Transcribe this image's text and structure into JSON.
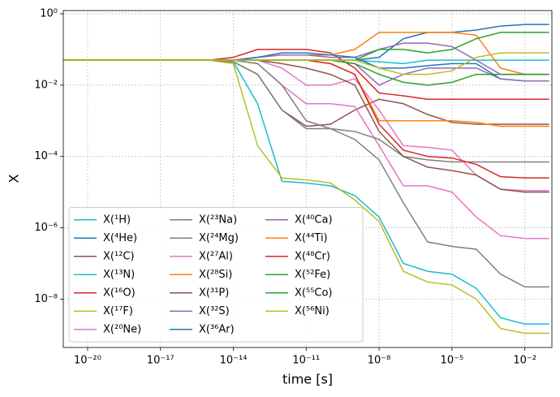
{
  "chart_data": {
    "type": "line",
    "x_label": "time [s]",
    "y_label": "X",
    "x_log": true,
    "y_log": true,
    "grid": true,
    "legend": "lower left",
    "legend_columns": 3,
    "xlim": [
      1e-21,
      0.13
    ],
    "ylim": [
      4.4e-10,
      1.23
    ],
    "xticks": [
      {
        "value": 1e-20,
        "label": "10⁻²⁰"
      },
      {
        "value": 1e-17,
        "label": "10⁻¹⁷"
      },
      {
        "value": 1e-14,
        "label": "10⁻¹⁴"
      },
      {
        "value": 1e-11,
        "label": "10⁻¹¹"
      },
      {
        "value": 1e-08,
        "label": "10⁻⁸"
      },
      {
        "value": 1e-05,
        "label": "10⁻⁵"
      },
      {
        "value": 0.01,
        "label": "10⁻²"
      }
    ],
    "yticks": [
      {
        "value": 1,
        "label": "10⁰"
      },
      {
        "value": 0.01,
        "label": "10⁻²"
      },
      {
        "value": 0.0001,
        "label": "10⁻⁴"
      },
      {
        "value": 1e-06,
        "label": "10⁻⁶"
      },
      {
        "value": 1e-08,
        "label": "10⁻⁸"
      }
    ],
    "x": [
      1e-21,
      1e-15,
      1e-14,
      1e-13,
      1e-12,
      1e-11,
      1e-10,
      1e-09,
      1e-08,
      1e-07,
      1e-06,
      1e-05,
      0.0001,
      0.001,
      0.01,
      0.1
    ],
    "series": [
      {
        "name": "X(¹H)",
        "color": "#17becf",
        "values": [
          0.05,
          0.05,
          0.045,
          0.003,
          2e-05,
          1.8e-05,
          1.5e-05,
          8e-06,
          2e-06,
          1e-07,
          6e-08,
          5e-08,
          2e-08,
          3e-09,
          2e-09,
          2e-09
        ]
      },
      {
        "name": "X(⁴He)",
        "color": "#1f77b4",
        "values": [
          0.05,
          0.05,
          0.05,
          0.05,
          0.05,
          0.05,
          0.05,
          0.05,
          0.06,
          0.2,
          0.3,
          0.3,
          0.35,
          0.45,
          0.5,
          0.5
        ]
      },
      {
        "name": "X(¹²C)",
        "color": "#8c564b",
        "values": [
          0.05,
          0.05,
          0.045,
          0.02,
          0.002,
          0.0007,
          0.0008,
          0.002,
          0.004,
          0.003,
          0.0015,
          0.0009,
          0.0008,
          0.0008,
          0.0008,
          0.0008
        ]
      },
      {
        "name": "X(¹³N)",
        "color": "#17becf",
        "values": [
          0.05,
          0.05,
          0.05,
          0.05,
          0.05,
          0.05,
          0.05,
          0.05,
          0.045,
          0.04,
          0.05,
          0.05,
          0.05,
          0.05,
          0.05,
          0.05
        ]
      },
      {
        "name": "X(¹⁶O)",
        "color": "#d62728",
        "values": [
          0.05,
          0.05,
          0.06,
          0.1,
          0.1,
          0.1,
          0.08,
          0.03,
          0.006,
          0.005,
          0.004,
          0.004,
          0.004,
          0.004,
          0.004,
          0.004
        ]
      },
      {
        "name": "X(¹⁷F)",
        "color": "#bcbd22",
        "values": [
          0.05,
          0.05,
          0.04,
          0.0002,
          2.5e-05,
          2.2e-05,
          1.8e-05,
          6e-06,
          1.5e-06,
          6e-08,
          3e-08,
          2.5e-08,
          1e-08,
          1.5e-09,
          1.1e-09,
          1.1e-09
        ]
      },
      {
        "name": "X(²⁰Ne)",
        "color": "#e377c2",
        "values": [
          0.05,
          0.05,
          0.05,
          0.04,
          0.01,
          0.003,
          0.003,
          0.0025,
          0.0002,
          1.5e-05,
          1.5e-05,
          1e-05,
          2e-06,
          6e-07,
          5e-07,
          5e-07
        ]
      },
      {
        "name": "X(²³Na)",
        "color": "#7f7f7f",
        "values": [
          0.05,
          0.05,
          0.045,
          0.02,
          0.002,
          0.0006,
          0.0006,
          0.0003,
          8e-05,
          5e-06,
          4e-07,
          3e-07,
          2.5e-07,
          5e-08,
          2.2e-08,
          2.2e-08
        ]
      },
      {
        "name": "X(²⁴Mg)",
        "color": "#7f7f7f",
        "values": [
          0.05,
          0.05,
          0.05,
          0.04,
          0.01,
          0.001,
          0.0006,
          0.0005,
          0.0003,
          0.0001,
          8e-05,
          7e-05,
          7e-05,
          7e-05,
          7e-05,
          7e-05
        ]
      },
      {
        "name": "X(²⁷Al)",
        "color": "#e377c2",
        "values": [
          0.05,
          0.05,
          0.05,
          0.05,
          0.03,
          0.01,
          0.01,
          0.015,
          0.002,
          0.0002,
          0.00018,
          0.00015,
          3e-05,
          1.2e-05,
          1.1e-05,
          1.1e-05
        ]
      },
      {
        "name": "X(²⁸Si)",
        "color": "#ff7f0e",
        "values": [
          0.05,
          0.05,
          0.05,
          0.06,
          0.07,
          0.07,
          0.07,
          0.1,
          0.3,
          0.3,
          0.3,
          0.3,
          0.25,
          0.03,
          0.02,
          0.02
        ]
      },
      {
        "name": "X(³¹P)",
        "color": "#8c564b",
        "values": [
          0.05,
          0.05,
          0.05,
          0.05,
          0.04,
          0.03,
          0.02,
          0.01,
          0.0005,
          0.0001,
          5e-05,
          4e-05,
          3e-05,
          1.2e-05,
          1e-05,
          1e-05
        ]
      },
      {
        "name": "X(³²S)",
        "color": "#9467bd",
        "values": [
          0.05,
          0.05,
          0.05,
          0.06,
          0.07,
          0.07,
          0.06,
          0.06,
          0.1,
          0.15,
          0.15,
          0.12,
          0.05,
          0.02,
          0.02,
          0.02
        ]
      },
      {
        "name": "X(³⁶Ar)",
        "color": "#1f77b4",
        "values": [
          0.05,
          0.05,
          0.05,
          0.06,
          0.08,
          0.08,
          0.07,
          0.06,
          0.03,
          0.03,
          0.035,
          0.04,
          0.04,
          0.015,
          0.013,
          0.013
        ]
      },
      {
        "name": "X(⁴⁰Ca)",
        "color": "#9467bd",
        "values": [
          0.05,
          0.05,
          0.05,
          0.05,
          0.05,
          0.05,
          0.05,
          0.04,
          0.01,
          0.02,
          0.03,
          0.03,
          0.03,
          0.015,
          0.013,
          0.013
        ]
      },
      {
        "name": "X(⁴⁴Ti)",
        "color": "#ff7f0e",
        "values": [
          0.05,
          0.05,
          0.05,
          0.05,
          0.05,
          0.05,
          0.04,
          0.02,
          0.001,
          0.001,
          0.001,
          0.001,
          0.0009,
          0.0007,
          0.0007,
          0.0007
        ]
      },
      {
        "name": "X(⁴⁸Cr)",
        "color": "#d62728",
        "values": [
          0.05,
          0.05,
          0.05,
          0.05,
          0.05,
          0.05,
          0.04,
          0.02,
          0.0008,
          0.00015,
          0.0001,
          9e-05,
          6e-05,
          2.7e-05,
          2.5e-05,
          2.5e-05
        ]
      },
      {
        "name": "X(⁵²Fe)",
        "color": "#2ca02c",
        "values": [
          0.05,
          0.05,
          0.05,
          0.05,
          0.05,
          0.05,
          0.05,
          0.05,
          0.1,
          0.1,
          0.08,
          0.1,
          0.2,
          0.3,
          0.3,
          0.3
        ]
      },
      {
        "name": "X(⁵⁵Co)",
        "color": "#2ca02c",
        "values": [
          0.05,
          0.05,
          0.05,
          0.05,
          0.05,
          0.05,
          0.05,
          0.04,
          0.02,
          0.012,
          0.01,
          0.012,
          0.02,
          0.02,
          0.02,
          0.02
        ]
      },
      {
        "name": "X(⁵⁶Ni)",
        "color": "#bcbd22",
        "values": [
          0.05,
          0.05,
          0.05,
          0.05,
          0.05,
          0.05,
          0.05,
          0.05,
          0.03,
          0.02,
          0.02,
          0.025,
          0.06,
          0.08,
          0.08,
          0.08
        ]
      }
    ]
  }
}
